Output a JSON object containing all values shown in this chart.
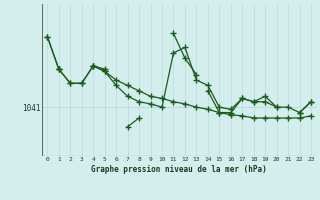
{
  "xlabel": "Graphe pression niveau de la mer (hPa)",
  "hours": [
    0,
    1,
    2,
    3,
    4,
    5,
    6,
    7,
    8,
    9,
    10,
    11,
    12,
    13,
    14,
    15,
    16,
    17,
    18,
    19,
    20,
    21,
    22,
    23
  ],
  "line1": [
    1047.5,
    1044.5,
    null,
    null,
    1044.8,
    1044.5,
    null,
    1039.2,
    1040.0,
    null,
    null,
    1047.8,
    1045.5,
    1044.0,
    null,
    null,
    null,
    null,
    null,
    null,
    null,
    null,
    null,
    null
  ],
  "line2": [
    1047.5,
    1044.5,
    1043.2,
    1043.2,
    1044.8,
    1044.3,
    1043.5,
    1043.0,
    1042.5,
    1042.0,
    1041.8,
    1041.5,
    1041.3,
    1041.0,
    1040.8,
    1040.5,
    1040.3,
    1040.2,
    1040.0,
    1040.0,
    1040.0,
    1040.0,
    1040.0,
    1040.2
  ],
  "line3": [
    null,
    1044.5,
    1043.2,
    1043.2,
    1044.8,
    1044.3,
    1043.0,
    1042.0,
    1041.5,
    1041.3,
    1041.0,
    1046.0,
    1046.5,
    1043.5,
    1043.0,
    1041.0,
    1040.8,
    1041.8,
    1041.5,
    1041.5,
    1041.0,
    1041.0,
    1040.5,
    1041.5
  ],
  "line4": [
    null,
    null,
    null,
    null,
    null,
    null,
    null,
    null,
    null,
    null,
    null,
    null,
    null,
    null,
    1042.5,
    1040.5,
    1040.5,
    1041.8,
    1041.5,
    1042.0,
    1041.0,
    null,
    1040.5,
    1041.5
  ],
  "yref": 1041,
  "ylim": [
    1036.5,
    1050.5
  ],
  "ytick_val": 1041,
  "ytick_label": "1041",
  "line_color": "#1a5c1a",
  "bg_color": "#d4eeee",
  "vgrid_color": "#b8dcdc",
  "hgrid_color": "#b8dcdc",
  "marker": "+",
  "markersize": 4,
  "markeredgewidth": 1.0,
  "linewidth": 0.9,
  "figsize": [
    3.2,
    2.0
  ],
  "dpi": 100
}
